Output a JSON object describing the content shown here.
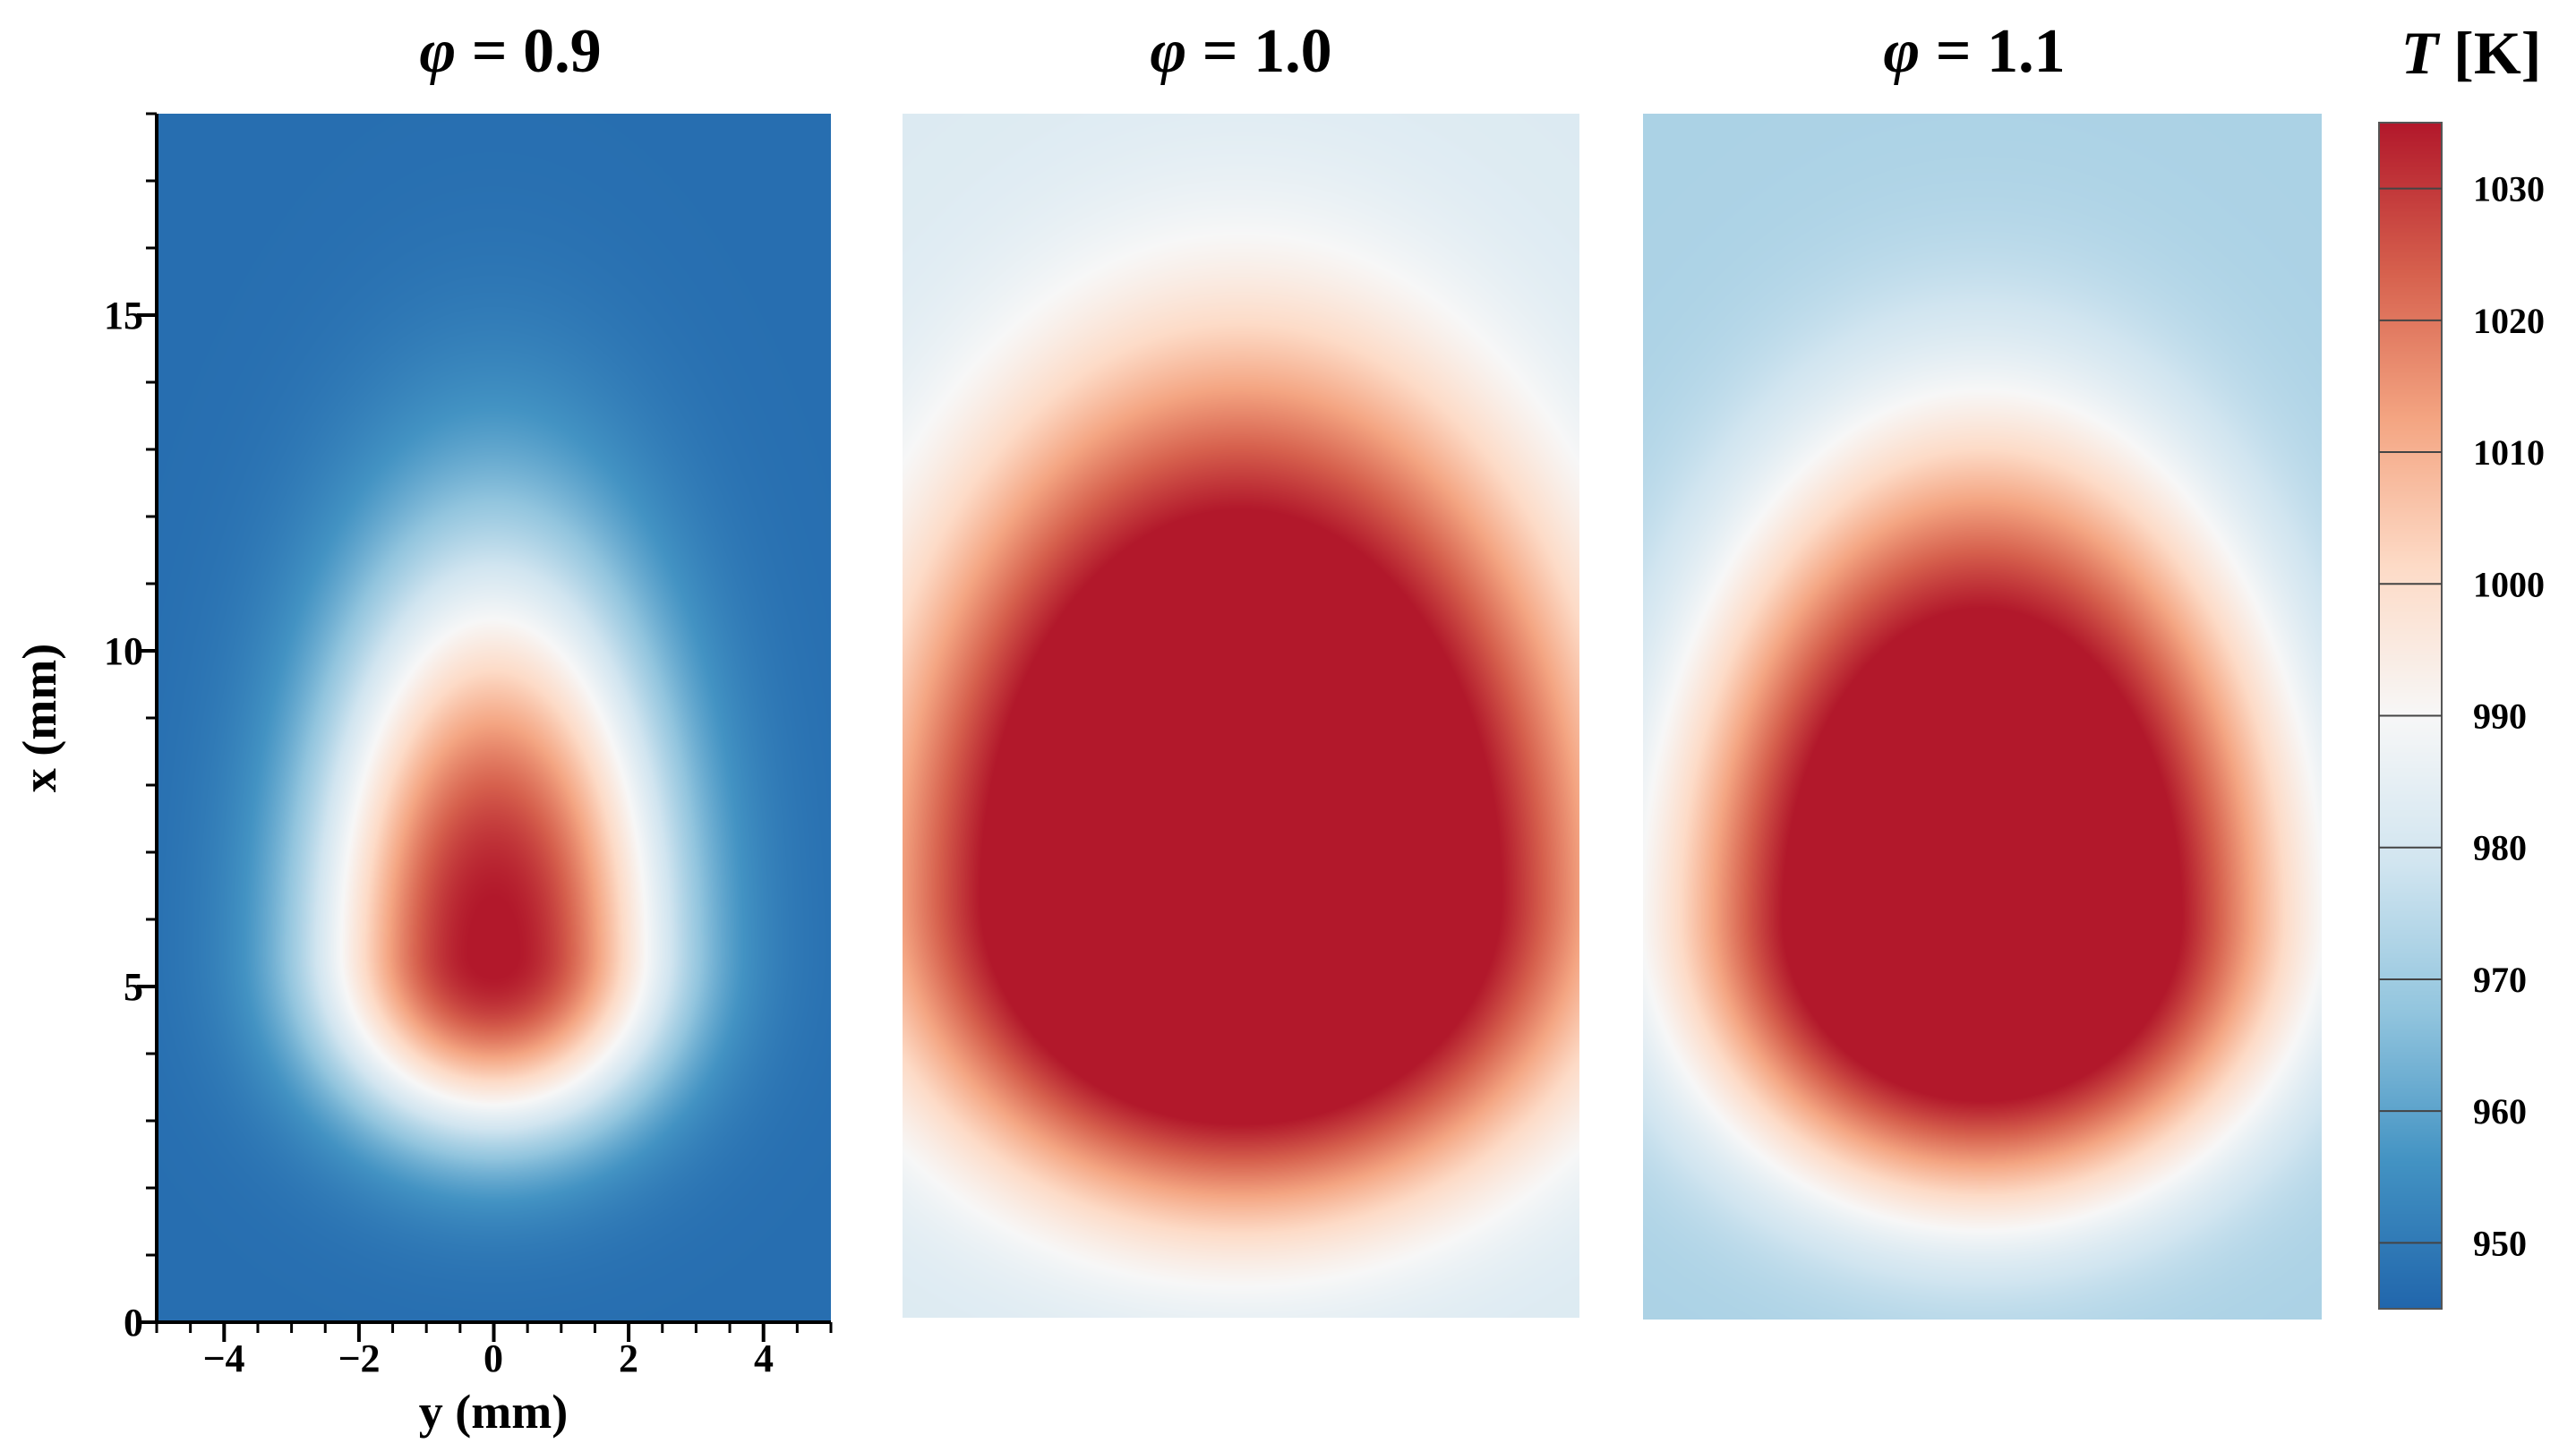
{
  "chart_data": {
    "type": "heatmap",
    "shared": {
      "xlabel": "y (mm)",
      "ylabel": "x (mm)",
      "xlim": [
        -5,
        5
      ],
      "ylim": [
        0,
        18
      ],
      "x_ticks": [
        -4,
        -2,
        0,
        2,
        4
      ],
      "x_tick_labels": [
        "−4",
        "−2",
        "0",
        "2",
        "4"
      ],
      "y_ticks": [
        0,
        5,
        10,
        15
      ],
      "y_tick_labels": [
        "0",
        "5",
        "10",
        "15"
      ]
    },
    "panels": [
      {
        "symbol": "φ",
        "value_text": " = 0.9",
        "field": {
          "cx": 0,
          "cy": 5.5,
          "T_max": 1036,
          "T_min": 947,
          "decay_x": 2.6,
          "decay_y_up": 5.7,
          "decay_y_down": 2.6,
          "sharpness": 1.15
        }
      },
      {
        "symbol": "φ",
        "value_text": " = 1.0",
        "field": {
          "cx": 0,
          "cy": 6.3,
          "T_max": 1058,
          "T_min": 982,
          "decay_x": 5.2,
          "decay_y_up": 7.8,
          "decay_y_down": 4.6,
          "sharpness": 1.7
        }
      },
      {
        "symbol": "φ",
        "value_text": " = 1.1",
        "field": {
          "cx": 0,
          "cy": 6.0,
          "T_max": 1055,
          "T_min": 972,
          "decay_x": 4.4,
          "decay_y_up": 6.9,
          "decay_y_down": 4.1,
          "sharpness": 1.6
        }
      }
    ],
    "colorbar": {
      "title_symbol": "T",
      "title_unit": " [K]",
      "range": [
        945,
        1035
      ],
      "ticks": [
        950,
        960,
        970,
        980,
        990,
        1000,
        1010,
        1020,
        1030
      ],
      "tick_labels": [
        "950",
        "960",
        "970",
        "980",
        "990",
        "1000",
        "1010",
        "1020",
        "1030"
      ],
      "colormap": [
        "#2166ac",
        "#4393c3",
        "#92c5de",
        "#d1e5f0",
        "#f7f7f7",
        "#fddbc7",
        "#f4a582",
        "#d6604d",
        "#b2182b"
      ]
    }
  }
}
